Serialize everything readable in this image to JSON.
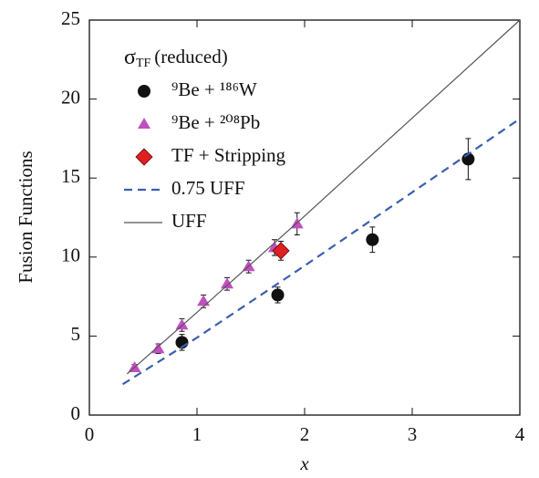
{
  "chart_data": {
    "type": "scatter",
    "x_label": "x",
    "y_label": "Fusion Functions",
    "xlim": [
      0,
      4
    ],
    "ylim": [
      0,
      25
    ],
    "xticks": [
      0,
      1,
      2,
      3,
      4
    ],
    "yticks": [
      0,
      5,
      10,
      15,
      20,
      25
    ],
    "legend_title": {
      "symbol": "σ",
      "subscript": "TF",
      "text": "(reduced)"
    },
    "legend": "upper left",
    "series": [
      {
        "name": "⁹Be + ¹⁸⁶W",
        "marker": "circle",
        "color": "#111111",
        "x": [
          0.86,
          1.75,
          2.63,
          3.52
        ],
        "values": [
          4.6,
          7.6,
          11.1,
          16.2
        ],
        "errors": [
          0.5,
          0.5,
          0.8,
          1.3
        ]
      },
      {
        "name": "⁹Be + ²⁰⁸Pb",
        "marker": "triangle",
        "color": "#c050c0",
        "x": [
          0.42,
          0.64,
          0.86,
          1.06,
          1.28,
          1.48,
          1.72,
          1.93
        ],
        "values": [
          3.0,
          4.2,
          5.7,
          7.2,
          8.3,
          9.4,
          10.6,
          12.1
        ],
        "errors": [
          0.2,
          0.3,
          0.4,
          0.4,
          0.4,
          0.4,
          0.5,
          0.7
        ]
      },
      {
        "name": "TF + Stripping",
        "marker": "diamond",
        "color": "#e02020",
        "x": [
          1.78
        ],
        "values": [
          10.4
        ],
        "errors": [
          0.6
        ]
      },
      {
        "name": "0.75 UFF",
        "marker": "dashed",
        "color": "#3a5fb0",
        "x": [
          0.31,
          1,
          2,
          3,
          4
        ],
        "values": [
          1.95,
          4.9,
          9.45,
          14.1,
          18.75
        ]
      },
      {
        "name": "UFF",
        "marker": "line",
        "color": "#555555",
        "x": [
          0.35,
          1,
          2,
          3,
          4
        ],
        "values": [
          2.6,
          6.5,
          12.6,
          18.8,
          25
        ]
      }
    ]
  }
}
